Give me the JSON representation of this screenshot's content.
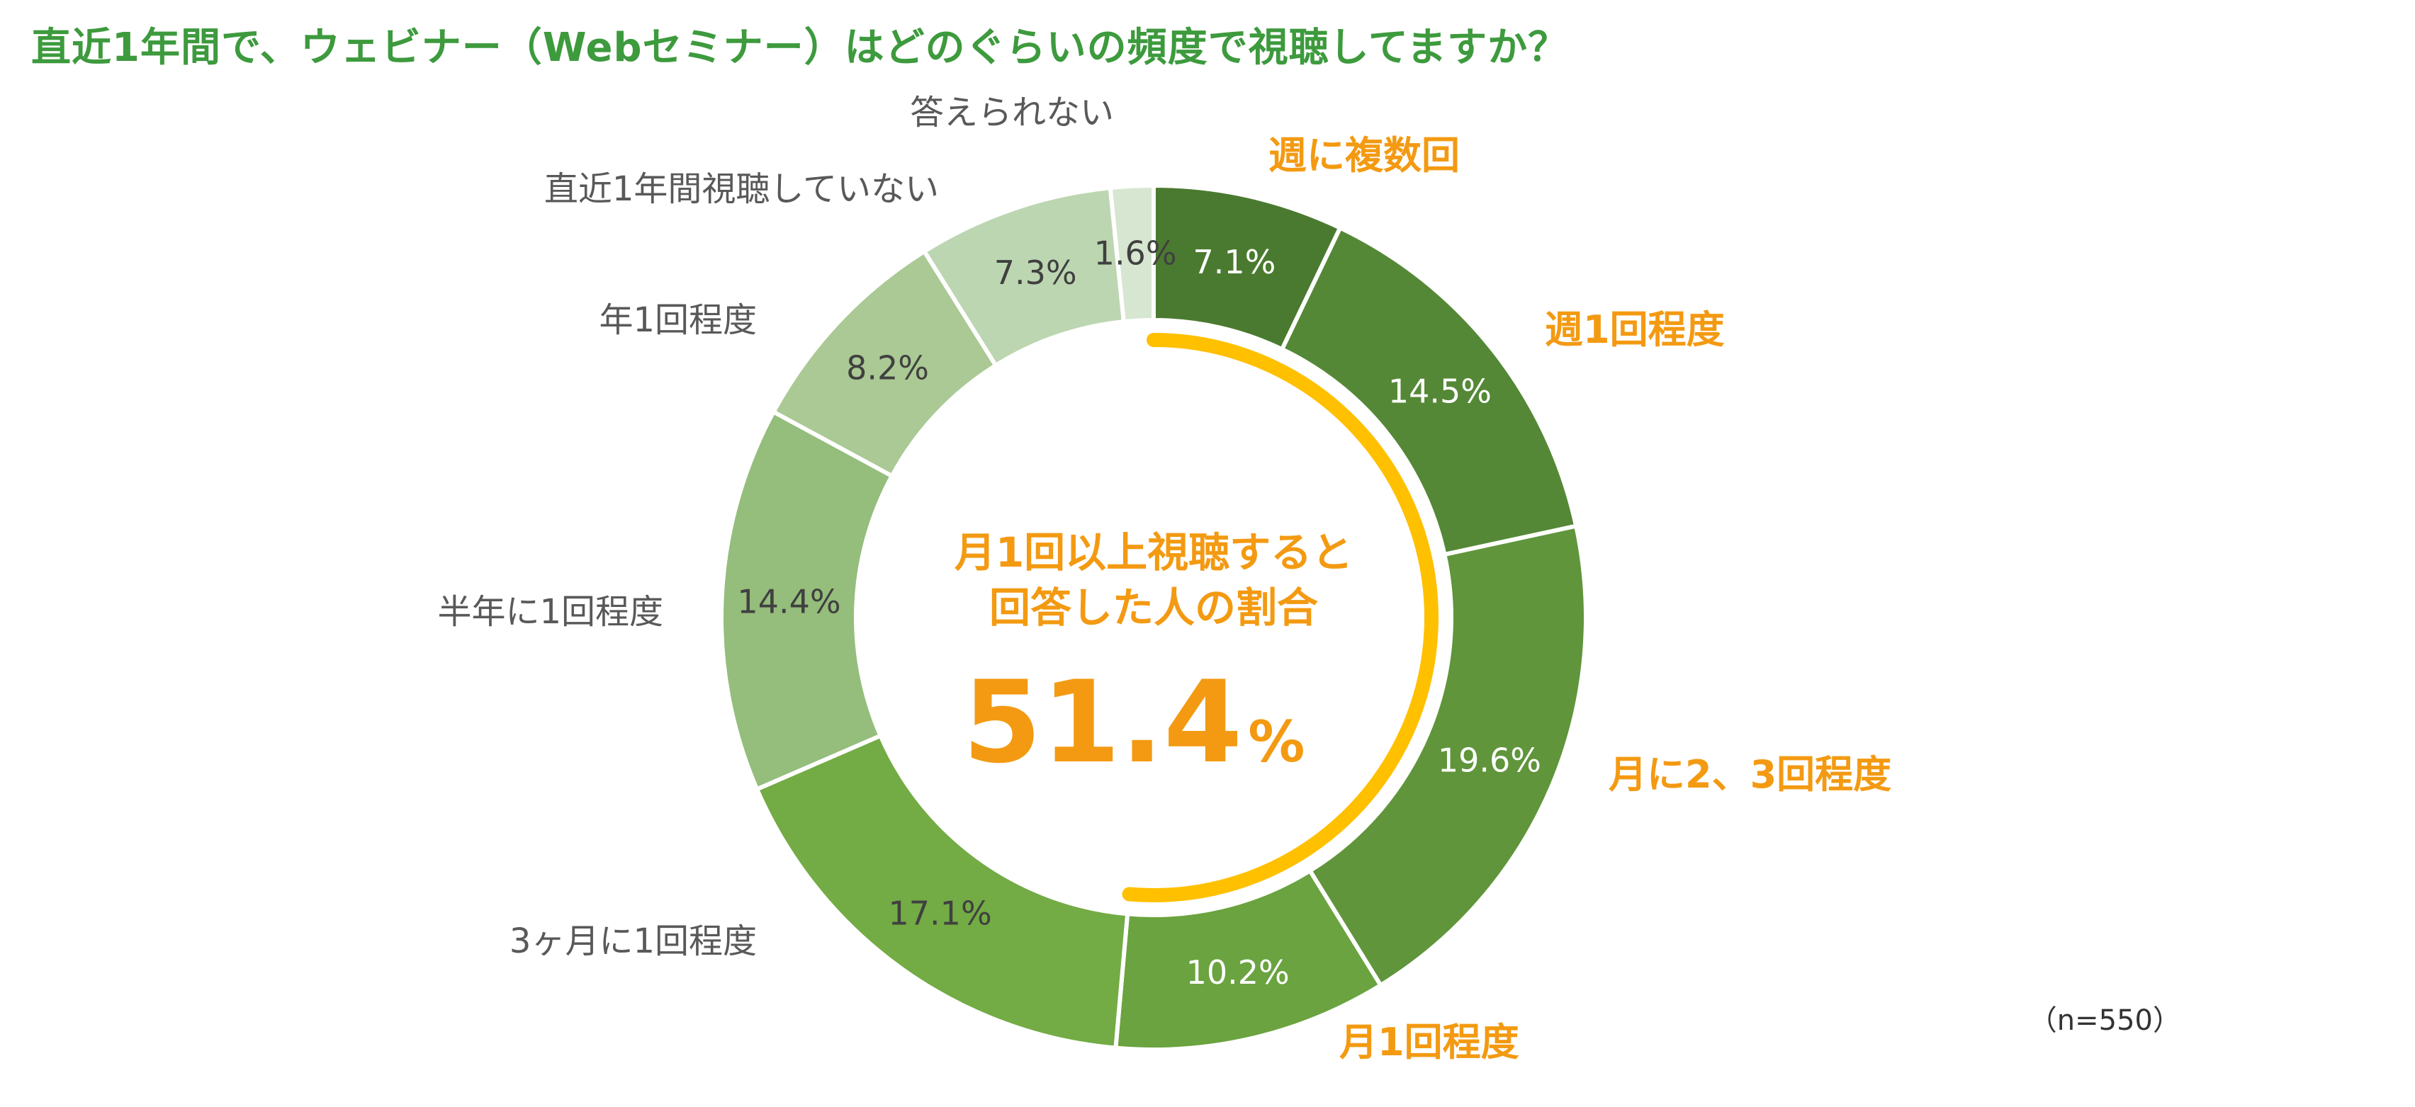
{
  "title": "直近1年間で、ウェビナー（Webセミナー）はどのぐらいの頻度で視聴してますか？",
  "sample_size": "（n=550）",
  "center": {
    "line1": "月1回以上視聴すると",
    "line2": "回答した人の割合",
    "value": "51.4",
    "unit": "%"
  },
  "colors": {
    "title": "#3d9a3d",
    "highlight": "#f39a12",
    "arc": "#ffc000",
    "gray_label": "#595959"
  },
  "chart_data": {
    "type": "pie",
    "style": "donut",
    "title": "直近1年間で、ウェビナー（Webセミナー）はどのぐらいの頻度で視聴してますか？",
    "slices": [
      {
        "label": "週に複数回",
        "value": 7.1,
        "value_label": "7.1%",
        "color": "#4a7a2f",
        "highlight": true
      },
      {
        "label": "週1回程度",
        "value": 14.5,
        "value_label": "14.5%",
        "color": "#558836",
        "highlight": true
      },
      {
        "label": "月に2、3回程度",
        "value": 19.6,
        "value_label": "19.6%",
        "color": "#60953b",
        "highlight": true
      },
      {
        "label": "月1回程度",
        "value": 10.2,
        "value_label": "10.2%",
        "color": "#6aa33f",
        "highlight": true
      },
      {
        "label": "3ヶ月に1回程度",
        "value": 17.1,
        "value_label": "17.1%",
        "color": "#73ab45",
        "highlight": false
      },
      {
        "label": "半年に1回程度",
        "value": 14.4,
        "value_label": "14.4%",
        "color": "#95bd7c",
        "highlight": false
      },
      {
        "label": "年1回程度",
        "value": 8.2,
        "value_label": "8.2%",
        "color": "#aac994",
        "highlight": false
      },
      {
        "label": "直近1年間視聴していない",
        "value": 7.3,
        "value_label": "7.3%",
        "color": "#bdd6b2",
        "highlight": false
      },
      {
        "label": "答えられない",
        "value": 1.6,
        "value_label": "1.6%",
        "color": "#d6e6d0",
        "highlight": false
      }
    ],
    "highlight_total": 51.4
  }
}
